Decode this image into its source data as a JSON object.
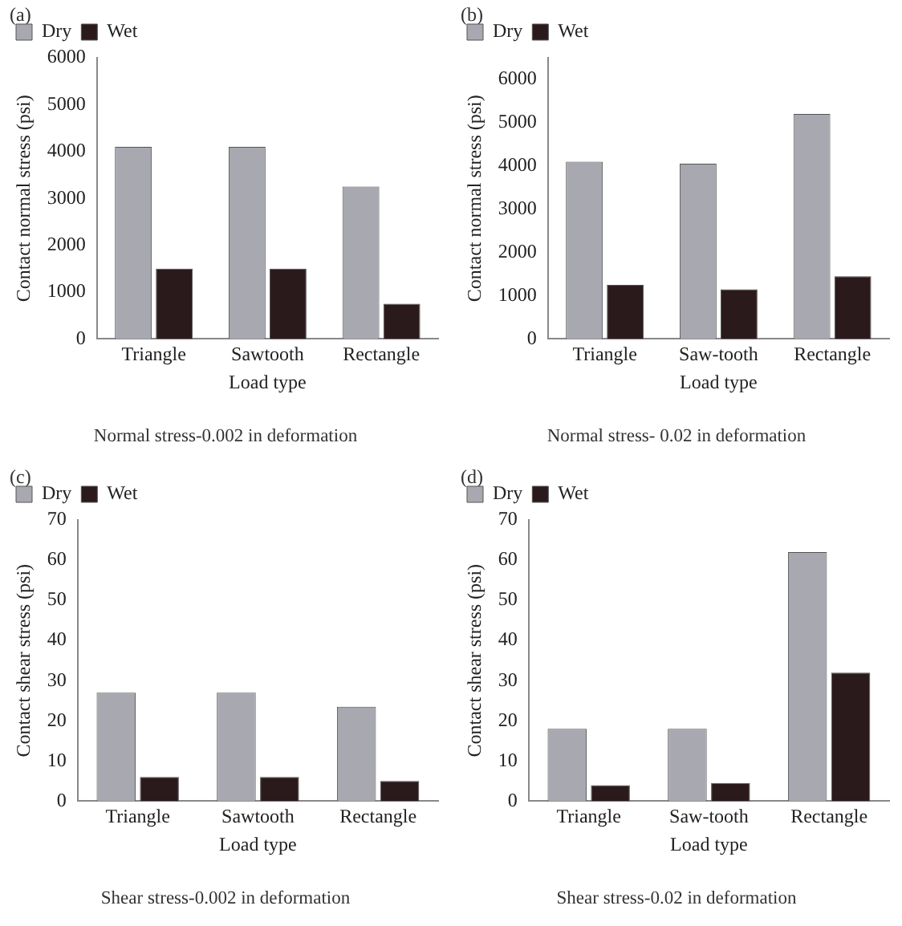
{
  "chart_data": [
    {
      "type": "bar",
      "title": "(a)",
      "xlabel": "Load type",
      "ylabel": "Contact normal stress (psi)",
      "categories": [
        "Triangle",
        "Sawtooth",
        "Rectangle"
      ],
      "series": [
        {
          "name": "Dry",
          "color": "#a8a8b0",
          "values": [
            4100,
            4100,
            3250
          ]
        },
        {
          "name": "Wet",
          "color": "#2b1a1c",
          "values": [
            1500,
            1500,
            750
          ]
        }
      ],
      "ylim": [
        0,
        6000
      ],
      "yticks": [
        0,
        1000,
        2000,
        3000,
        4000,
        5000,
        6000
      ],
      "legend": "top left",
      "annotations": [
        "Normal stress-0.002 in deformation"
      ]
    },
    {
      "type": "bar",
      "title": "(b)",
      "xlabel": "Load type",
      "ylabel": "Contact normal stress (psi)",
      "categories": [
        "Triangle",
        "Saw-tooth",
        "Rectangle"
      ],
      "series": [
        {
          "name": "Dry",
          "color": "#a8a8b0",
          "values": [
            4100,
            4050,
            5200
          ]
        },
        {
          "name": "Wet",
          "color": "#2b1a1c",
          "values": [
            1250,
            1150,
            1450
          ]
        }
      ],
      "ylim": [
        0,
        6500
      ],
      "yticks": [
        0,
        1000,
        2000,
        3000,
        4000,
        5000,
        6000
      ],
      "legend": "top left",
      "annotations": [
        "Normal stress- 0.02 in deformation"
      ]
    },
    {
      "type": "bar",
      "title": "(c)",
      "xlabel": "Load type",
      "ylabel": "Contact shear stress (psi)",
      "categories": [
        "Triangle",
        "Sawtooth",
        "Rectangle"
      ],
      "series": [
        {
          "name": "Dry",
          "color": "#a8a8b0",
          "values": [
            27,
            27,
            23.5
          ]
        },
        {
          "name": "Wet",
          "color": "#2b1a1c",
          "values": [
            6,
            6,
            5
          ]
        }
      ],
      "ylim": [
        0,
        70
      ],
      "yticks": [
        0,
        10,
        20,
        30,
        40,
        50,
        60,
        70
      ],
      "legend": "top left",
      "annotations": [
        "Shear stress-0.002 in deformation"
      ]
    },
    {
      "type": "bar",
      "title": "(d)",
      "xlabel": "Load type",
      "ylabel": "Contact shear stress (psi)",
      "categories": [
        "Triangle",
        "Saw-tooth",
        "Rectangle"
      ],
      "series": [
        {
          "name": "Dry",
          "color": "#a8a8b0",
          "values": [
            18,
            18,
            62
          ]
        },
        {
          "name": "Wet",
          "color": "#2b1a1c",
          "values": [
            4,
            4.5,
            32
          ]
        }
      ],
      "ylim": [
        0,
        70
      ],
      "yticks": [
        0,
        10,
        20,
        30,
        40,
        50,
        60,
        70
      ],
      "legend": "top left",
      "annotations": [
        "Shear stress-0.02 in deformation"
      ]
    }
  ]
}
